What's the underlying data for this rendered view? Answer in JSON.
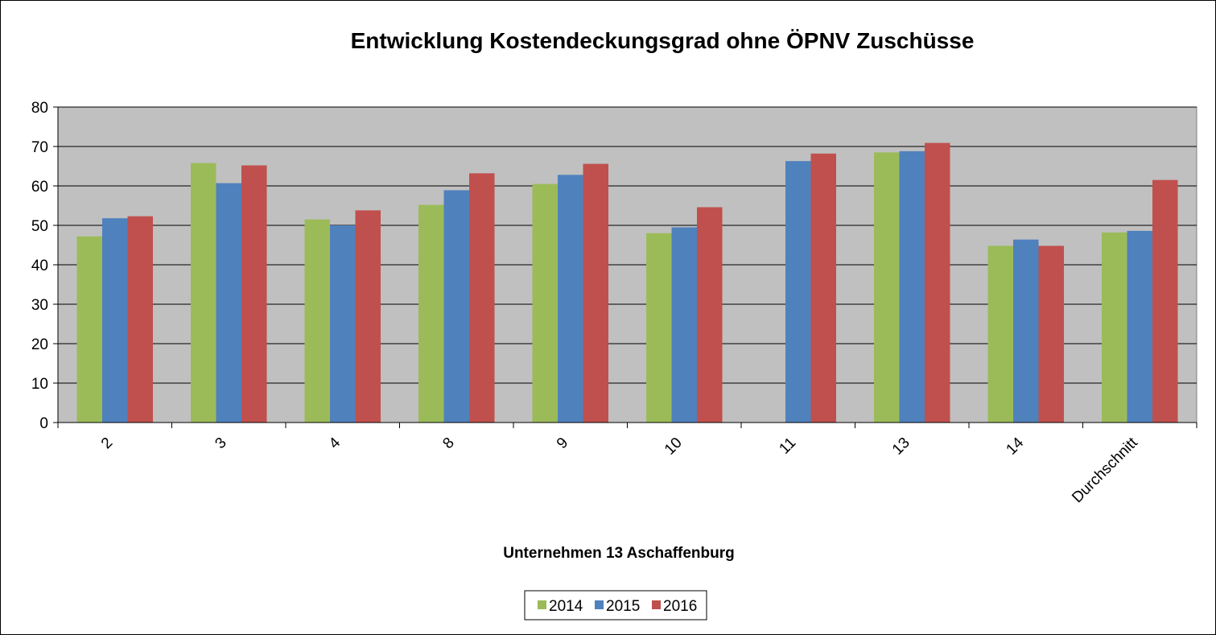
{
  "chart_data": {
    "type": "bar",
    "title": "Entwicklung Kostendeckungsgrad ohne ÖPNV Zuschüsse",
    "xlabel": "Unternehmen  13 Aschaffenburg",
    "ylabel": "",
    "ylim": [
      0,
      80
    ],
    "yticks": [
      0,
      10,
      20,
      30,
      40,
      50,
      60,
      70,
      80
    ],
    "grid": true,
    "legend": "bottom",
    "categories": [
      "2",
      "3",
      "4",
      "8",
      "9",
      "10",
      "11",
      "13",
      "14",
      "Durchschnitt"
    ],
    "series": [
      {
        "name": "2014",
        "color": "#9bbb59",
        "values": [
          47.2,
          65.8,
          51.5,
          55.2,
          60.5,
          48.0,
          null,
          68.5,
          44.8,
          48.2
        ]
      },
      {
        "name": "2015",
        "color": "#4f81bd",
        "values": [
          51.8,
          60.7,
          50.0,
          58.9,
          62.8,
          49.5,
          66.3,
          68.8,
          46.4,
          48.6
        ]
      },
      {
        "name": "2016",
        "color": "#c0504d",
        "values": [
          52.3,
          65.2,
          53.8,
          63.2,
          65.6,
          54.6,
          68.2,
          70.9,
          44.8,
          61.5
        ]
      }
    ]
  }
}
